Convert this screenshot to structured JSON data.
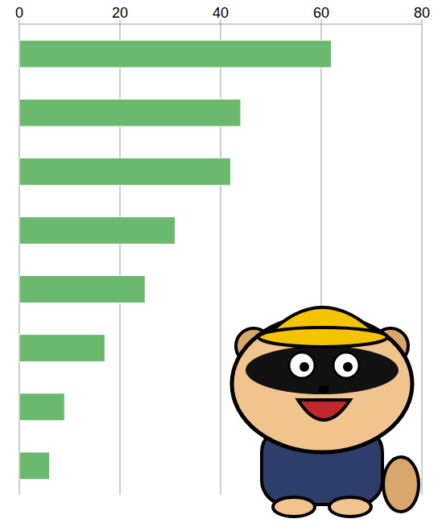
{
  "chart_data": {
    "type": "bar",
    "orientation": "horizontal",
    "categories": [
      null,
      null,
      null,
      null,
      null,
      null,
      null,
      null
    ],
    "values": [
      62,
      44,
      42,
      31,
      25,
      17,
      9,
      6
    ],
    "color": "#6bb86f",
    "xlim": [
      0,
      80
    ],
    "xticks": [
      0,
      20,
      40,
      60,
      80
    ],
    "grid": true,
    "tick_labels": "x"
  }
}
